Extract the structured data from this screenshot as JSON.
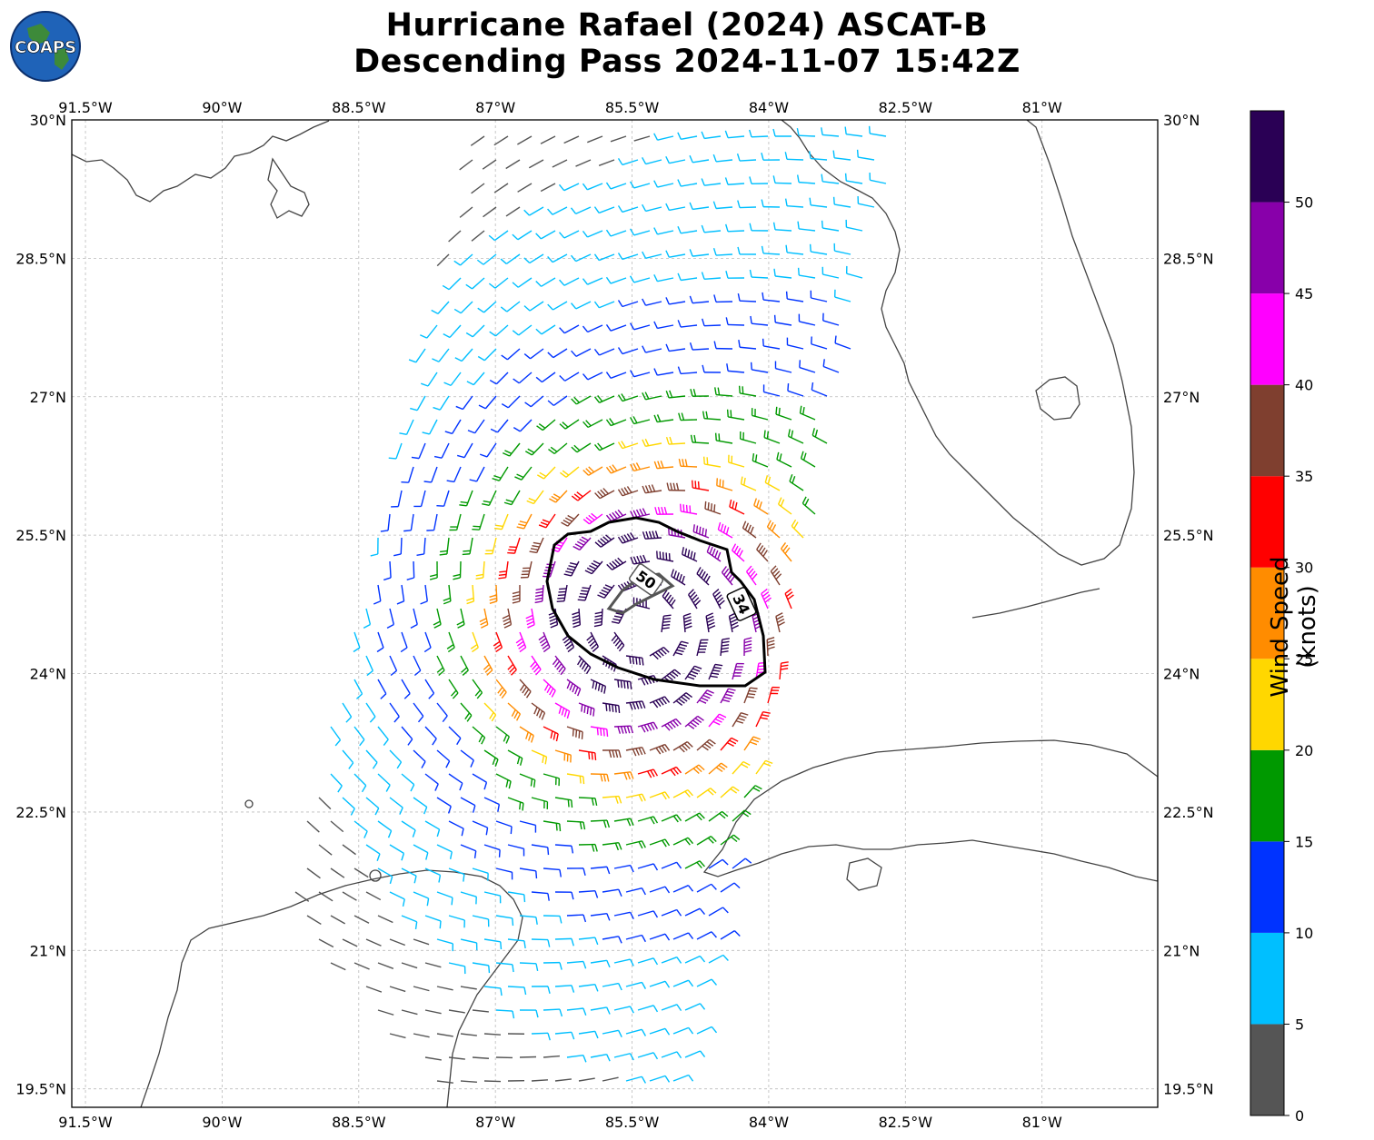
{
  "title": {
    "line1": "Hurricane Rafael (2024) ASCAT-B",
    "line2": "Descending Pass 2024-11-07 15:42Z"
  },
  "logo": {
    "text": "COAPS",
    "icon": "globe-logo-icon"
  },
  "map": {
    "extent": {
      "lon_min": -91.65,
      "lon_max": -79.73,
      "lat_min": 19.3,
      "lat_max": 30.0
    },
    "lon_ticks": [
      {
        "value": -91.5,
        "label": "91.5°W"
      },
      {
        "value": -90.0,
        "label": "90°W"
      },
      {
        "value": -88.5,
        "label": "88.5°W"
      },
      {
        "value": -87.0,
        "label": "87°W"
      },
      {
        "value": -85.5,
        "label": "85.5°W"
      },
      {
        "value": -84.0,
        "label": "84°W"
      },
      {
        "value": -82.5,
        "label": "82.5°W"
      },
      {
        "value": -81.0,
        "label": "81°W"
      }
    ],
    "lat_ticks": [
      {
        "value": 30.0,
        "label": "30°N"
      },
      {
        "value": 28.5,
        "label": "28.5°N"
      },
      {
        "value": 27.0,
        "label": "27°N"
      },
      {
        "value": 25.5,
        "label": "25.5°N"
      },
      {
        "value": 24.0,
        "label": "24°N"
      },
      {
        "value": 22.5,
        "label": "22.5°N"
      },
      {
        "value": 21.0,
        "label": "21°N"
      },
      {
        "value": 19.5,
        "label": "19.5°N"
      }
    ],
    "grid": true,
    "storm_center": {
      "lon": -85.4,
      "lat": 24.55
    },
    "contours": [
      {
        "label": "34",
        "color": "#000000"
      },
      {
        "label": "50",
        "color": "#555555"
      }
    ],
    "features": [
      "Gulf of Mexico",
      "Florida",
      "Cuba",
      "Yucatan Peninsula"
    ]
  },
  "colorbar": {
    "label": "Wind Speed (knots)",
    "ticks": [
      "0",
      "5",
      "10",
      "15",
      "20",
      "25",
      "30",
      "35",
      "40",
      "45",
      "50"
    ],
    "bins": [
      {
        "min": 0,
        "max": 5,
        "color": "#555555"
      },
      {
        "min": 5,
        "max": 10,
        "color": "#00bfff"
      },
      {
        "min": 10,
        "max": 15,
        "color": "#0033ff"
      },
      {
        "min": 15,
        "max": 20,
        "color": "#009900"
      },
      {
        "min": 20,
        "max": 25,
        "color": "#ffd700"
      },
      {
        "min": 25,
        "max": 30,
        "color": "#ff8c00"
      },
      {
        "min": 30,
        "max": 35,
        "color": "#ff0000"
      },
      {
        "min": 35,
        "max": 40,
        "color": "#7f3f2f"
      },
      {
        "min": 40,
        "max": 45,
        "color": "#ff00ff"
      },
      {
        "min": 45,
        "max": 50,
        "color": "#8800aa"
      },
      {
        "min": 50,
        "max": 55,
        "color": "#2a0055"
      }
    ]
  }
}
